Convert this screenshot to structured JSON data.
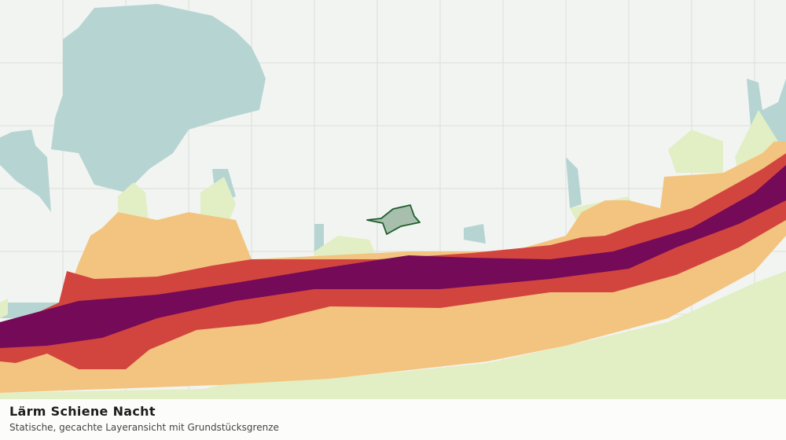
{
  "title": "Lärm Schiene Nacht",
  "subtitle": "Statische, gecachte Layeransicht mit Grundstücksgrenze"
}
